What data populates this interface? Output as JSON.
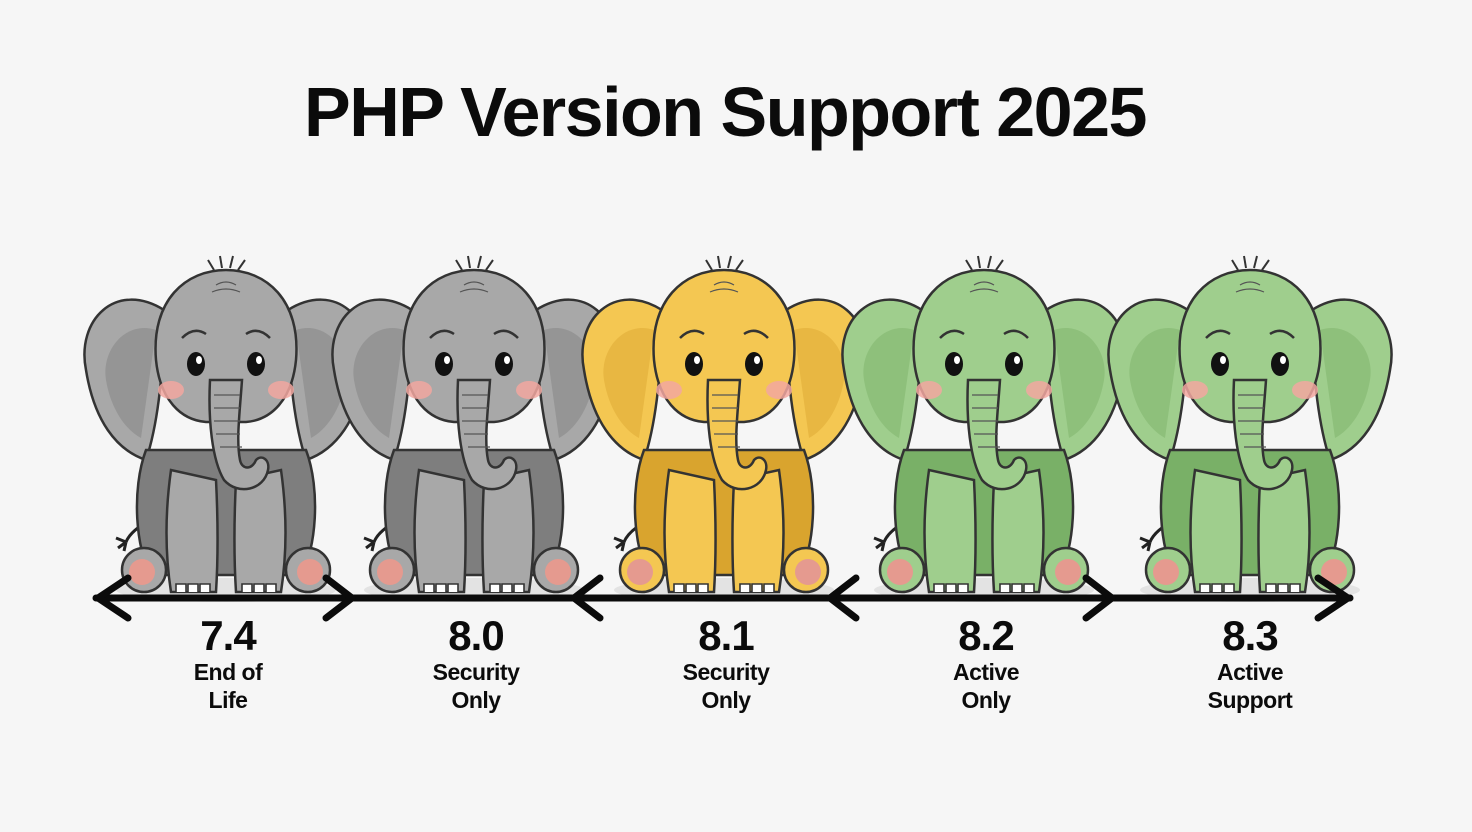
{
  "title": "PHP Version Support 2025",
  "versions": [
    {
      "version": "7.4",
      "status_line1": "End of",
      "status_line2": "Life",
      "color": "#a8a8a8",
      "color_dark": "#7e7e7e"
    },
    {
      "version": "8.0",
      "status_line1": "Security",
      "status_line2": "Only",
      "color": "#a8a8a8",
      "color_dark": "#7e7e7e"
    },
    {
      "version": "8.1",
      "status_line1": "Security",
      "status_line2": "Only",
      "color": "#f4c752",
      "color_dark": "#d9a42e"
    },
    {
      "version": "8.2",
      "status_line1": "Active",
      "status_line2": "Only",
      "color": "#9fce8d",
      "color_dark": "#79b067"
    },
    {
      "version": "8.3",
      "status_line1": "Active",
      "status_line2": "Support",
      "color": "#9fce8d",
      "color_dark": "#79b067"
    }
  ]
}
